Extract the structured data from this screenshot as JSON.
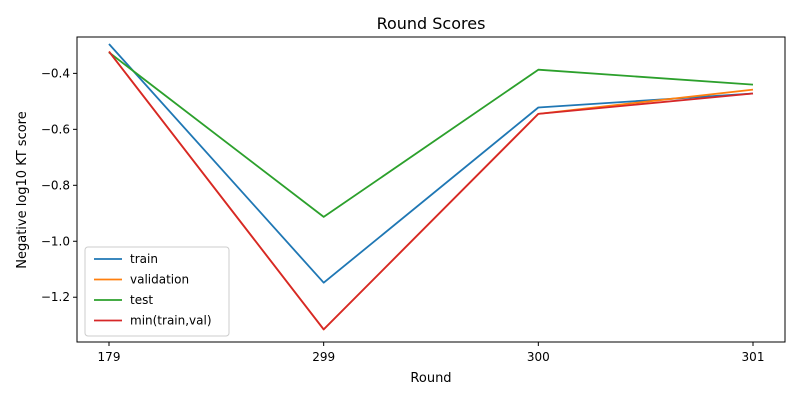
{
  "chart_data": {
    "type": "line",
    "title": "Round Scores",
    "xlabel": "Round",
    "ylabel": "Negative log10 KT score",
    "categories": [
      "179",
      "299",
      "300",
      "301"
    ],
    "ylim": [
      -1.36,
      -0.27
    ],
    "yticks": [
      -1.2,
      -1.0,
      -0.8,
      -0.6,
      -0.4
    ],
    "ytick_labels": [
      "−1.2",
      "−1.0",
      "−0.8",
      "−0.6",
      "−0.4"
    ],
    "grid": false,
    "legend_position": "lower-left",
    "series": [
      {
        "name": "train",
        "color": "#1f77b4",
        "values": [
          -0.295,
          -1.148,
          -0.522,
          -0.472
        ]
      },
      {
        "name": "validation",
        "color": "#ff7f0e",
        "values": [
          -0.322,
          -1.315,
          -0.545,
          -0.458
        ]
      },
      {
        "name": "test",
        "color": "#2ca02c",
        "values": [
          -0.325,
          -0.913,
          -0.387,
          -0.44
        ]
      },
      {
        "name": "min(train,val)",
        "color": "#d62728",
        "values": [
          -0.322,
          -1.315,
          -0.545,
          -0.472
        ]
      }
    ]
  }
}
